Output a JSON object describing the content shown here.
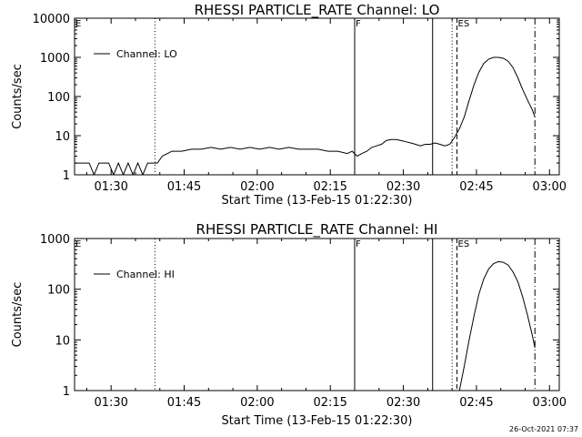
{
  "footer": {
    "timestamp": "26-Oct-2021 07:37"
  },
  "chart_data": [
    {
      "type": "line",
      "title": "RHESSI PARTICLE_RATE Channel: LO",
      "xlabel": "Start Time (13-Feb-15 01:22:30)",
      "ylabel": "Counts/sec",
      "y_scale": "log",
      "ylim": [
        1,
        10000
      ],
      "xlim_minutes": [
        0,
        99.5
      ],
      "xticks": [
        {
          "minute": 7.5,
          "label": "01:30"
        },
        {
          "minute": 22.5,
          "label": "01:45"
        },
        {
          "minute": 37.5,
          "label": "02:00"
        },
        {
          "minute": 52.5,
          "label": "02:15"
        },
        {
          "minute": 67.5,
          "label": "02:30"
        },
        {
          "minute": 82.5,
          "label": "02:45"
        },
        {
          "minute": 97.5,
          "label": "03:00"
        }
      ],
      "yticks": [
        {
          "value": 1,
          "label": "1"
        },
        {
          "value": 10,
          "label": "10"
        },
        {
          "value": 100,
          "label": "100"
        },
        {
          "value": 1000,
          "label": "1000"
        },
        {
          "value": 10000,
          "label": "10000"
        }
      ],
      "legend": {
        "label": "Channel: LO",
        "position": "top-left"
      },
      "markers": [
        {
          "minute": 0,
          "style": "none",
          "label": "E"
        },
        {
          "minute": 16.5,
          "style": "dotted",
          "label": ""
        },
        {
          "minute": 57.5,
          "style": "solid",
          "label": "F"
        },
        {
          "minute": 73.5,
          "style": "solid",
          "label": ""
        },
        {
          "minute": 77.5,
          "style": "dotted",
          "label": ""
        },
        {
          "minute": 78.5,
          "style": "dashed",
          "label": "ES"
        },
        {
          "minute": 94.5,
          "style": "dashdot",
          "label": ""
        }
      ],
      "series": [
        {
          "x": [
            0,
            1,
            2,
            3,
            4,
            5,
            6,
            7,
            8,
            9,
            10,
            11,
            12,
            13,
            14,
            15,
            16,
            17,
            18,
            20,
            22,
            24,
            26,
            28,
            30,
            32,
            34,
            36,
            38,
            40,
            42,
            44,
            46,
            48,
            50,
            52,
            54,
            56,
            57,
            58,
            59,
            60,
            61,
            62,
            63,
            64,
            65,
            66,
            67,
            68,
            69,
            70,
            71,
            72,
            73,
            74,
            75,
            76,
            77,
            78,
            79,
            80,
            81,
            82,
            83,
            84,
            85,
            86,
            87,
            88,
            89,
            90,
            91,
            92,
            93,
            94,
            94.5
          ],
          "y": [
            2,
            2,
            2,
            2,
            1,
            2,
            2,
            2,
            1,
            2,
            1,
            2,
            1,
            2,
            1,
            2,
            2,
            2,
            3,
            4,
            4,
            4.5,
            4.5,
            5,
            4.5,
            5,
            4.5,
            5,
            4.5,
            5,
            4.5,
            5,
            4.5,
            4.5,
            4.5,
            4,
            4,
            3.5,
            4,
            3,
            3.5,
            4,
            5,
            5.5,
            6,
            7.5,
            8,
            8,
            7.5,
            7,
            6.5,
            6,
            5.5,
            6,
            6,
            6.5,
            6,
            5.5,
            6,
            9,
            15,
            30,
            80,
            200,
            420,
            700,
            900,
            1000,
            1000,
            950,
            800,
            550,
            300,
            150,
            80,
            45,
            30
          ]
        }
      ]
    },
    {
      "type": "line",
      "title": "RHESSI PARTICLE_RATE Channel: HI",
      "xlabel": "Start Time (13-Feb-15 01:22:30)",
      "ylabel": "Counts/sec",
      "y_scale": "log",
      "ylim": [
        1,
        1000
      ],
      "xlim_minutes": [
        0,
        99.5
      ],
      "xticks": [
        {
          "minute": 7.5,
          "label": "01:30"
        },
        {
          "minute": 22.5,
          "label": "01:45"
        },
        {
          "minute": 37.5,
          "label": "02:00"
        },
        {
          "minute": 52.5,
          "label": "02:15"
        },
        {
          "minute": 67.5,
          "label": "02:30"
        },
        {
          "minute": 82.5,
          "label": "02:45"
        },
        {
          "minute": 97.5,
          "label": "03:00"
        }
      ],
      "yticks": [
        {
          "value": 1,
          "label": "1"
        },
        {
          "value": 10,
          "label": "10"
        },
        {
          "value": 100,
          "label": "100"
        },
        {
          "value": 1000,
          "label": "1000"
        }
      ],
      "legend": {
        "label": "Channel: HI",
        "position": "top-left"
      },
      "markers": [
        {
          "minute": 0,
          "style": "none",
          "label": "E"
        },
        {
          "minute": 16.5,
          "style": "dotted",
          "label": ""
        },
        {
          "minute": 57.5,
          "style": "solid",
          "label": "F"
        },
        {
          "minute": 73.5,
          "style": "solid",
          "label": ""
        },
        {
          "minute": 77.5,
          "style": "dotted",
          "label": ""
        },
        {
          "minute": 78.5,
          "style": "dashed",
          "label": "ES"
        },
        {
          "minute": 94.5,
          "style": "dashdot",
          "label": ""
        }
      ],
      "series": [
        {
          "x": [
            79,
            80,
            81,
            82,
            83,
            84,
            85,
            86,
            87,
            88,
            89,
            90,
            91,
            92,
            93,
            94,
            94.5
          ],
          "y": [
            1,
            3,
            10,
            30,
            80,
            160,
            250,
            320,
            350,
            340,
            300,
            220,
            140,
            70,
            30,
            12,
            7
          ]
        }
      ]
    }
  ]
}
